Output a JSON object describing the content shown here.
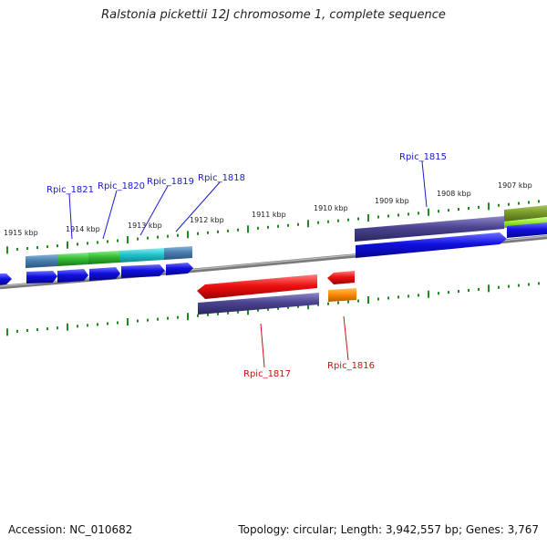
{
  "title": "Ralstonia pickettii 12J chromosome 1, complete sequence",
  "footer": {
    "accession": "Accession: NC_010682",
    "summary": "Topology: circular; Length: 3,942,557 bp; Genes: 3,767"
  },
  "colors": {
    "backbone": "#8a8a8a",
    "tick": "#1f8a1f",
    "forward_label": "#1a1acc",
    "reverse_label": "#cc1111",
    "cds": "#1010e0",
    "red_gene": "#ee1111",
    "orange_gene": "#ff8c00",
    "purple_feature": "#4a4490",
    "steel_feature": "#4a7fb0",
    "green_feature": "#33bb33",
    "cyan_feature": "#22c4cc",
    "olive_feature": "#7a9a2a",
    "lime_feature": "#9aee33"
  },
  "kbp_labels": [
    "1915 kbp",
    "1914 kbp",
    "1913 kbp",
    "1912 kbp",
    "1911 kbp",
    "1910 kbp",
    "1909 kbp",
    "1908 kbp",
    "1907 kbp"
  ],
  "forward_genes": [
    "Rpic_1821",
    "Rpic_1820",
    "Rpic_1819",
    "Rpic_1818",
    "Rpic_1815"
  ],
  "reverse_genes": [
    "Rpic_1817",
    "Rpic_1816"
  ]
}
